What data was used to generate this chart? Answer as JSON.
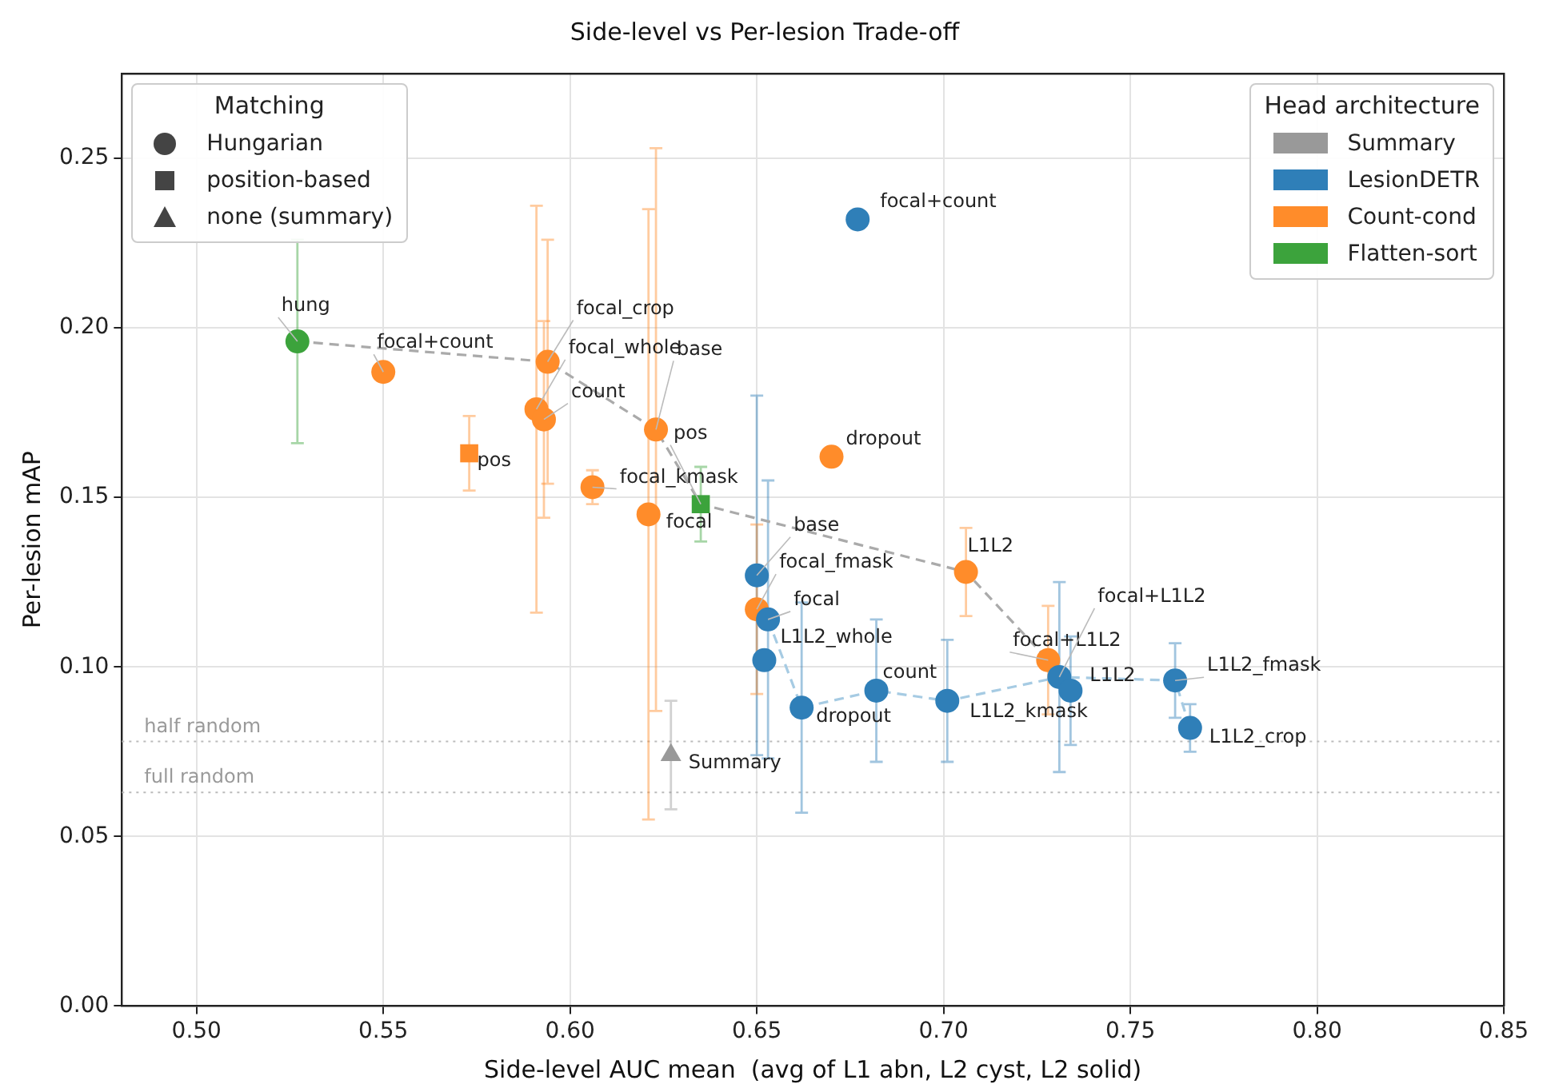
{
  "chart_data": {
    "type": "scatter",
    "title": "Side-level vs Per-lesion Trade-off",
    "xlabel": "Side-level AUC mean  (avg of L1 abn, L2 cyst, L2 solid)",
    "ylabel": "Per-lesion mAP",
    "legend_title": "Head architecture",
    "legend": "top right",
    "grid": true,
    "xlim": [
      0.48,
      0.85
    ],
    "ylim": [
      0,
      0.275
    ],
    "xticks": [
      {
        "value": 0.5,
        "label": "0.50"
      },
      {
        "value": 0.55,
        "label": "0.55"
      },
      {
        "value": 0.6,
        "label": "0.60"
      },
      {
        "value": 0.65,
        "label": "0.65"
      },
      {
        "value": 0.7,
        "label": "0.70"
      },
      {
        "value": 0.75,
        "label": "0.75"
      },
      {
        "value": 0.8,
        "label": "0.80"
      },
      {
        "value": 0.85,
        "label": "0.85"
      }
    ],
    "yticks": [
      {
        "value": 0,
        "label": "0.00"
      },
      {
        "value": 0.05,
        "label": "0.05"
      },
      {
        "value": 0.1,
        "label": "0.10"
      },
      {
        "value": 0.15,
        "label": "0.15"
      },
      {
        "value": 0.2,
        "label": "0.20"
      },
      {
        "value": 0.25,
        "label": "0.25"
      }
    ],
    "series": [
      {
        "type": "line",
        "color": "#aaaaaa",
        "line_style": "dashed",
        "marker": "none",
        "x": [
          0.527,
          0.594,
          0.623,
          0.635,
          0.706,
          0.728
        ],
        "values": [
          0.196,
          0.19,
          0.17,
          0.148,
          0.128,
          0.102
        ]
      },
      {
        "type": "line",
        "color": "#a6cbe3",
        "line_style": "dashed",
        "marker": "none",
        "x": [
          0.653,
          0.662,
          0.682,
          0.701,
          0.731,
          0.762,
          0.766
        ],
        "values": [
          0.114,
          0.088,
          0.093,
          0.09,
          0.097,
          0.096,
          0.082
        ]
      },
      {
        "name": "Summary",
        "color": "#999999",
        "marker": "triangle",
        "x": [
          0.627
        ],
        "values": [
          0.074
        ],
        "errors": [
          0.016
        ]
      },
      {
        "name": "LesionDETR",
        "color": "#2f7fb8",
        "marker": "circle",
        "x": [
          0.677,
          0.65,
          0.653,
          0.652,
          0.662,
          0.682,
          0.701,
          0.731,
          0.734,
          0.762,
          0.766
        ],
        "values": [
          0.232,
          0.127,
          0.114,
          0.102,
          0.088,
          0.093,
          0.09,
          0.097,
          0.093,
          0.096,
          0.082
        ],
        "errors": [
          null,
          0.053,
          0.041,
          null,
          0.031,
          0.021,
          0.018,
          0.028,
          0.016,
          0.011,
          0.007
        ]
      },
      {
        "name": "Count-cond",
        "color": "#ff8c2a",
        "marker": "circle",
        "x": [
          0.55,
          0.594,
          0.591,
          0.593,
          0.623,
          0.606,
          0.621,
          0.67,
          0.65,
          0.706,
          0.728
        ],
        "values": [
          0.187,
          0.19,
          0.176,
          0.173,
          0.17,
          0.153,
          0.145,
          0.162,
          0.117,
          0.128,
          0.102
        ],
        "errors": [
          null,
          0.036,
          0.06,
          0.029,
          0.083,
          0.005,
          0.09,
          null,
          0.025,
          0.013,
          0.016
        ]
      },
      {
        "color": "#ff8c2a",
        "marker": "square",
        "x": [
          0.573
        ],
        "values": [
          0.163
        ],
        "errors": [
          0.011
        ]
      },
      {
        "name": "Flatten-sort",
        "color": "#3ca33c",
        "marker": "circle",
        "x": [
          0.527
        ],
        "values": [
          0.196
        ],
        "errors": [
          0.03
        ]
      },
      {
        "color": "#3ca33c",
        "marker": "square",
        "x": [
          0.635
        ],
        "values": [
          0.148
        ],
        "errors": [
          0.011
        ]
      }
    ],
    "ref_lines": [
      {
        "axis": "y",
        "value": 0.078,
        "label": "half random",
        "color": "#bbbbbb",
        "line_style": "dotted"
      },
      {
        "axis": "y",
        "value": 0.063,
        "label": "full random",
        "color": "#bbbbbb",
        "line_style": "dotted"
      }
    ],
    "annotations": [
      "Matching",
      "Hungarian",
      "position-based",
      "none (summary)",
      {
        "text": "hung",
        "x": 0.527,
        "y": 0.196
      },
      {
        "text": "focal+count",
        "x": 0.55,
        "y": 0.187
      },
      {
        "text": "focal_crop",
        "x": 0.594,
        "y": 0.19
      },
      {
        "text": "focal_whole",
        "x": 0.591,
        "y": 0.176
      },
      {
        "text": "count",
        "x": 0.593,
        "y": 0.173
      },
      {
        "text": "base",
        "x": 0.623,
        "y": 0.17
      },
      {
        "text": "pos",
        "x": 0.635,
        "y": 0.148
      },
      {
        "text": "focal_kmask",
        "x": 0.606,
        "y": 0.153
      },
      {
        "text": "focal",
        "x": 0.621,
        "y": 0.145
      },
      {
        "text": "pos",
        "x": 0.573,
        "y": 0.163
      },
      {
        "text": "focal+count",
        "x": 0.677,
        "y": 0.232
      },
      {
        "text": "dropout",
        "x": 0.67,
        "y": 0.162
      },
      {
        "text": "base",
        "x": 0.65,
        "y": 0.127
      },
      {
        "text": "focal_fmask",
        "x": 0.65,
        "y": 0.117
      },
      {
        "text": "focal",
        "x": 0.653,
        "y": 0.114
      },
      {
        "text": "L1L2_whole",
        "x": 0.652,
        "y": 0.102
      },
      {
        "text": "dropout",
        "x": 0.662,
        "y": 0.088
      },
      {
        "text": "count",
        "x": 0.682,
        "y": 0.093
      },
      {
        "text": "L1L2_kmask",
        "x": 0.701,
        "y": 0.09
      },
      {
        "text": "L1L2",
        "x": 0.706,
        "y": 0.128
      },
      {
        "text": "focal+L1L2",
        "x": 0.728,
        "y": 0.102
      },
      {
        "text": "focal+L1L2",
        "x": 0.731,
        "y": 0.097
      },
      {
        "text": "L1L2",
        "x": 0.734,
        "y": 0.093
      },
      {
        "text": "L1L2_fmask",
        "x": 0.762,
        "y": 0.096
      },
      {
        "text": "L1L2_crop",
        "x": 0.766,
        "y": 0.082
      },
      {
        "text": "Summary",
        "x": 0.627,
        "y": 0.074
      }
    ]
  }
}
